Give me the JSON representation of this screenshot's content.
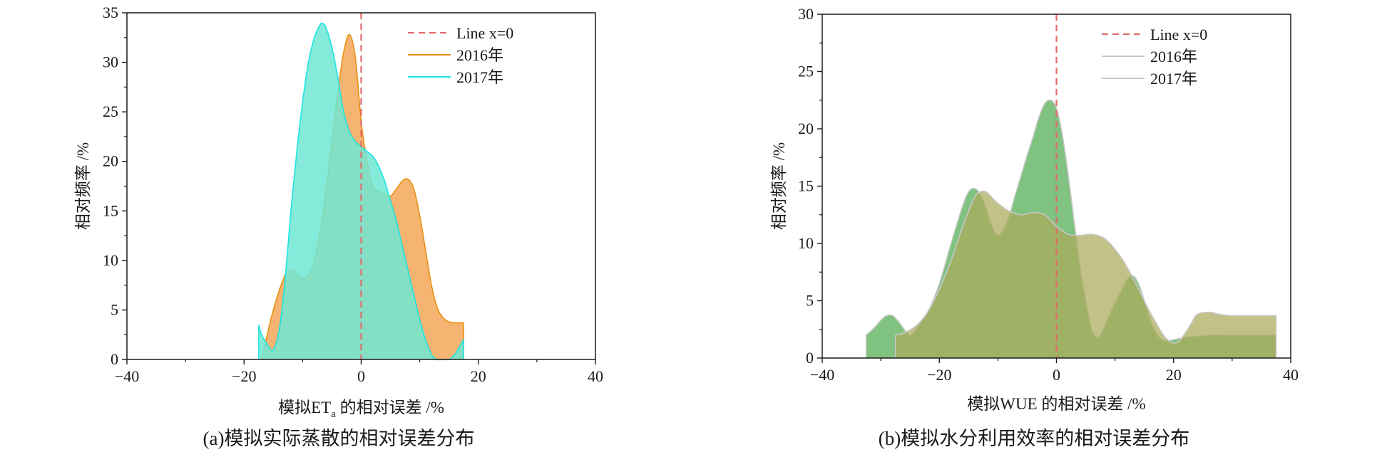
{
  "chart_data": [
    {
      "type": "area",
      "panel_caption": "(a)模拟实际蒸散的相对误差分布",
      "xlabel_main": "模拟ET",
      "xlabel_sub": "a",
      "xlabel_tail": " 的相对误差 /%",
      "ylabel": "相对频率 /%",
      "xlim": [
        -40,
        40
      ],
      "ylim": [
        0,
        35
      ],
      "xticks": [
        -40,
        -20,
        0,
        20,
        40
      ],
      "yticks": [
        0,
        5,
        10,
        15,
        20,
        25,
        30,
        35
      ],
      "reference_line": {
        "label": "Line x=0",
        "x": 0,
        "color": "#e06a6a"
      },
      "legend_position": "top-right",
      "series": [
        {
          "name": "2016年",
          "color": "#e8900f",
          "fill": "#f5a75a",
          "x": [
            -17,
            -15,
            -13,
            -12,
            -11,
            -10,
            -9,
            -8,
            -7,
            -6,
            -5,
            -4,
            -3,
            -2,
            -1,
            0,
            1,
            2,
            3,
            4,
            5,
            6,
            7,
            8,
            9,
            10,
            11,
            12,
            13,
            14,
            15,
            16,
            17.5
          ],
          "y": [
            0,
            5,
            8.5,
            9,
            8.7,
            8.2,
            8.5,
            10,
            13,
            17,
            22,
            27,
            31,
            32.8,
            30.5,
            24,
            20,
            17.5,
            17,
            16.7,
            16.5,
            17.2,
            18,
            18.2,
            17.2,
            14.5,
            11,
            7.5,
            5.2,
            4.2,
            3.8,
            3.7,
            3.7
          ]
        },
        {
          "name": "2017年",
          "color": "#1de3e3",
          "fill": "#6ee8d3",
          "x": [
            -17.5,
            -17,
            -16,
            -15,
            -14,
            -13,
            -12,
            -11,
            -10,
            -9,
            -8,
            -7,
            -6.5,
            -6,
            -5,
            -4,
            -3,
            -2,
            -1,
            0,
            1,
            2,
            3,
            4,
            5,
            6,
            7,
            8,
            9,
            10,
            11,
            12,
            13,
            14,
            15,
            16,
            17,
            17.5
          ],
          "y": [
            3.5,
            2.5,
            1.5,
            1,
            3,
            8,
            15,
            21,
            26,
            30,
            32.5,
            33.8,
            33.9,
            33.5,
            31.5,
            28.5,
            25,
            23,
            22,
            21.5,
            21,
            20.5,
            19.5,
            18,
            16,
            14,
            11.5,
            9,
            6.5,
            4,
            2,
            0.5,
            0,
            0,
            0,
            0.5,
            1.5,
            2
          ]
        }
      ]
    },
    {
      "type": "area",
      "panel_caption": "(b)模拟水分利用效率的相对误差分布",
      "xlabel": "模拟WUE 的相对误差 /%",
      "ylabel": "相对频率 /%",
      "xlim": [
        -40,
        40
      ],
      "ylim": [
        0,
        30
      ],
      "xticks": [
        -40,
        -20,
        0,
        20,
        40
      ],
      "yticks": [
        0,
        5,
        10,
        15,
        20,
        25,
        30
      ],
      "reference_line": {
        "label": "Line x=0",
        "x": 0,
        "color": "#e06a6a"
      },
      "legend_position": "top-right",
      "series": [
        {
          "name": "2016年",
          "color": "#c8c8c8",
          "fill": "rgba(100,180,100,0.82)",
          "x": [
            -32.5,
            -31,
            -30,
            -29,
            -28,
            -27,
            -26,
            -25,
            -24,
            -22,
            -20,
            -18,
            -16,
            -15,
            -14,
            -13,
            -12,
            -11,
            -10,
            -9,
            -8,
            -7,
            -6,
            -5,
            -4,
            -3,
            -2,
            -1,
            0,
            1,
            2,
            3,
            4,
            5,
            6,
            7,
            8,
            9,
            10,
            11,
            12,
            13,
            14,
            15,
            16,
            17,
            18,
            19,
            20,
            21,
            22,
            24,
            26,
            28,
            30,
            32,
            34,
            36,
            37.5
          ],
          "y": [
            2,
            2.7,
            3.3,
            3.7,
            3.7,
            3.2,
            2.5,
            2,
            2.5,
            4,
            6.5,
            10,
            13.3,
            14.5,
            14.8,
            14.3,
            13,
            11.5,
            10.7,
            11.3,
            12.5,
            14.3,
            16,
            17.7,
            19.3,
            21,
            22.2,
            22.5,
            21.8,
            19.5,
            16,
            12,
            8,
            5,
            2.5,
            1.8,
            2.5,
            3.7,
            4.8,
            5.8,
            6.8,
            7.2,
            6.5,
            5,
            3.3,
            2.2,
            1.6,
            1.5,
            1.6,
            1.7,
            1.8,
            1.9,
            2,
            2,
            2,
            2,
            2,
            2,
            2
          ]
        },
        {
          "name": "2017年",
          "color": "#c8c8c8",
          "fill": "rgba(170,170,90,0.72)",
          "x": [
            -27.5,
            -26,
            -24,
            -22,
            -20,
            -18,
            -16,
            -14,
            -13,
            -12,
            -11,
            -10,
            -8,
            -6,
            -4,
            -2,
            0,
            2,
            4,
            6,
            8,
            10,
            12,
            14,
            16,
            18,
            19,
            20,
            21,
            22,
            23,
            24,
            26,
            28,
            30,
            32,
            34,
            36,
            37.5
          ],
          "y": [
            2,
            2.2,
            2.8,
            4,
            6,
            8.5,
            11.5,
            14,
            14.5,
            14.5,
            14,
            13.5,
            12.8,
            12.5,
            12.7,
            12.5,
            11.5,
            10.8,
            10.7,
            10.8,
            10.5,
            9.5,
            8,
            6,
            4,
            2.2,
            1.6,
            1.3,
            1.5,
            2.2,
            3,
            3.8,
            4,
            3.8,
            3.7,
            3.7,
            3.7,
            3.7,
            3.7
          ]
        }
      ]
    }
  ]
}
